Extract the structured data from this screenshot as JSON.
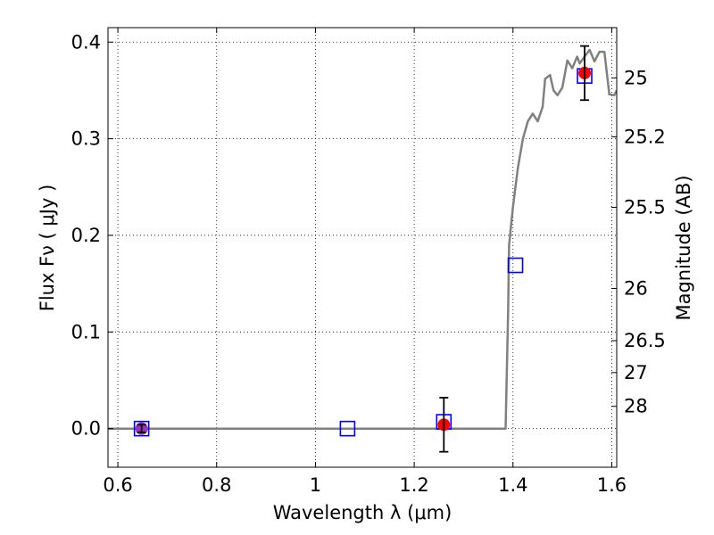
{
  "chart_data": {
    "type": "scatter",
    "xlabel": "Wavelength  λ (μm)",
    "ylabel": "Flux  Fν  ( μJy )",
    "ylabel_right": "Magnitude (AB)",
    "xlim": [
      0.58,
      1.61
    ],
    "ylim": [
      -0.04,
      0.415
    ],
    "grid": true,
    "x_ticks": [
      0.6,
      0.8,
      1.0,
      1.2,
      1.4,
      1.6
    ],
    "x_tick_labels": [
      "0.6",
      "0.8",
      "1",
      "1.2",
      "1.4",
      "1.6"
    ],
    "y_ticks": [
      0.0,
      0.1,
      0.2,
      0.3,
      0.4
    ],
    "y_tick_labels": [
      "0.0",
      "0.1",
      "0.2",
      "0.3",
      "0.4"
    ],
    "right_ticks": [
      {
        "label": "25",
        "flux": 0.363
      },
      {
        "label": "25.2",
        "flux": 0.302
      },
      {
        "label": "25.5",
        "flux": 0.229
      },
      {
        "label": "26",
        "flux": 0.145
      },
      {
        "label": "26.5",
        "flux": 0.091
      },
      {
        "label": "27",
        "flux": 0.058
      },
      {
        "label": "28",
        "flux": 0.023
      }
    ],
    "series": [
      {
        "kind": "line",
        "color": "#808080",
        "points": [
          [
            0.58,
            0.0
          ],
          [
            1.385,
            0.0
          ],
          [
            1.39,
            0.12
          ],
          [
            1.392,
            0.19
          ],
          [
            1.4,
            0.23
          ],
          [
            1.41,
            0.27
          ],
          [
            1.42,
            0.3
          ],
          [
            1.43,
            0.318
          ],
          [
            1.44,
            0.326
          ],
          [
            1.45,
            0.318
          ],
          [
            1.46,
            0.333
          ],
          [
            1.465,
            0.362
          ],
          [
            1.475,
            0.366
          ],
          [
            1.482,
            0.35
          ],
          [
            1.49,
            0.345
          ],
          [
            1.5,
            0.353
          ],
          [
            1.51,
            0.381
          ],
          [
            1.52,
            0.373
          ],
          [
            1.53,
            0.385
          ],
          [
            1.535,
            0.378
          ],
          [
            1.545,
            0.385
          ],
          [
            1.555,
            0.392
          ],
          [
            1.565,
            0.38
          ],
          [
            1.575,
            0.39
          ],
          [
            1.585,
            0.39
          ],
          [
            1.595,
            0.346
          ],
          [
            1.605,
            0.345
          ],
          [
            1.61,
            0.35
          ]
        ]
      },
      {
        "kind": "observed",
        "marker": "circle",
        "color": "#ff0000",
        "points": [
          {
            "x": 0.648,
            "y": 0.0,
            "err": 0.004,
            "color": "#9b30c0"
          },
          {
            "x": 1.26,
            "y": 0.004,
            "err": 0.028
          },
          {
            "x": 1.545,
            "y": 0.368,
            "err": 0.028
          }
        ]
      },
      {
        "kind": "model",
        "marker": "square",
        "color": "#0000ff",
        "points": [
          {
            "x": 0.648,
            "y": 0.0
          },
          {
            "x": 1.065,
            "y": 0.0
          },
          {
            "x": 1.26,
            "y": 0.007
          },
          {
            "x": 1.405,
            "y": 0.169
          },
          {
            "x": 1.545,
            "y": 0.365
          }
        ]
      }
    ]
  }
}
